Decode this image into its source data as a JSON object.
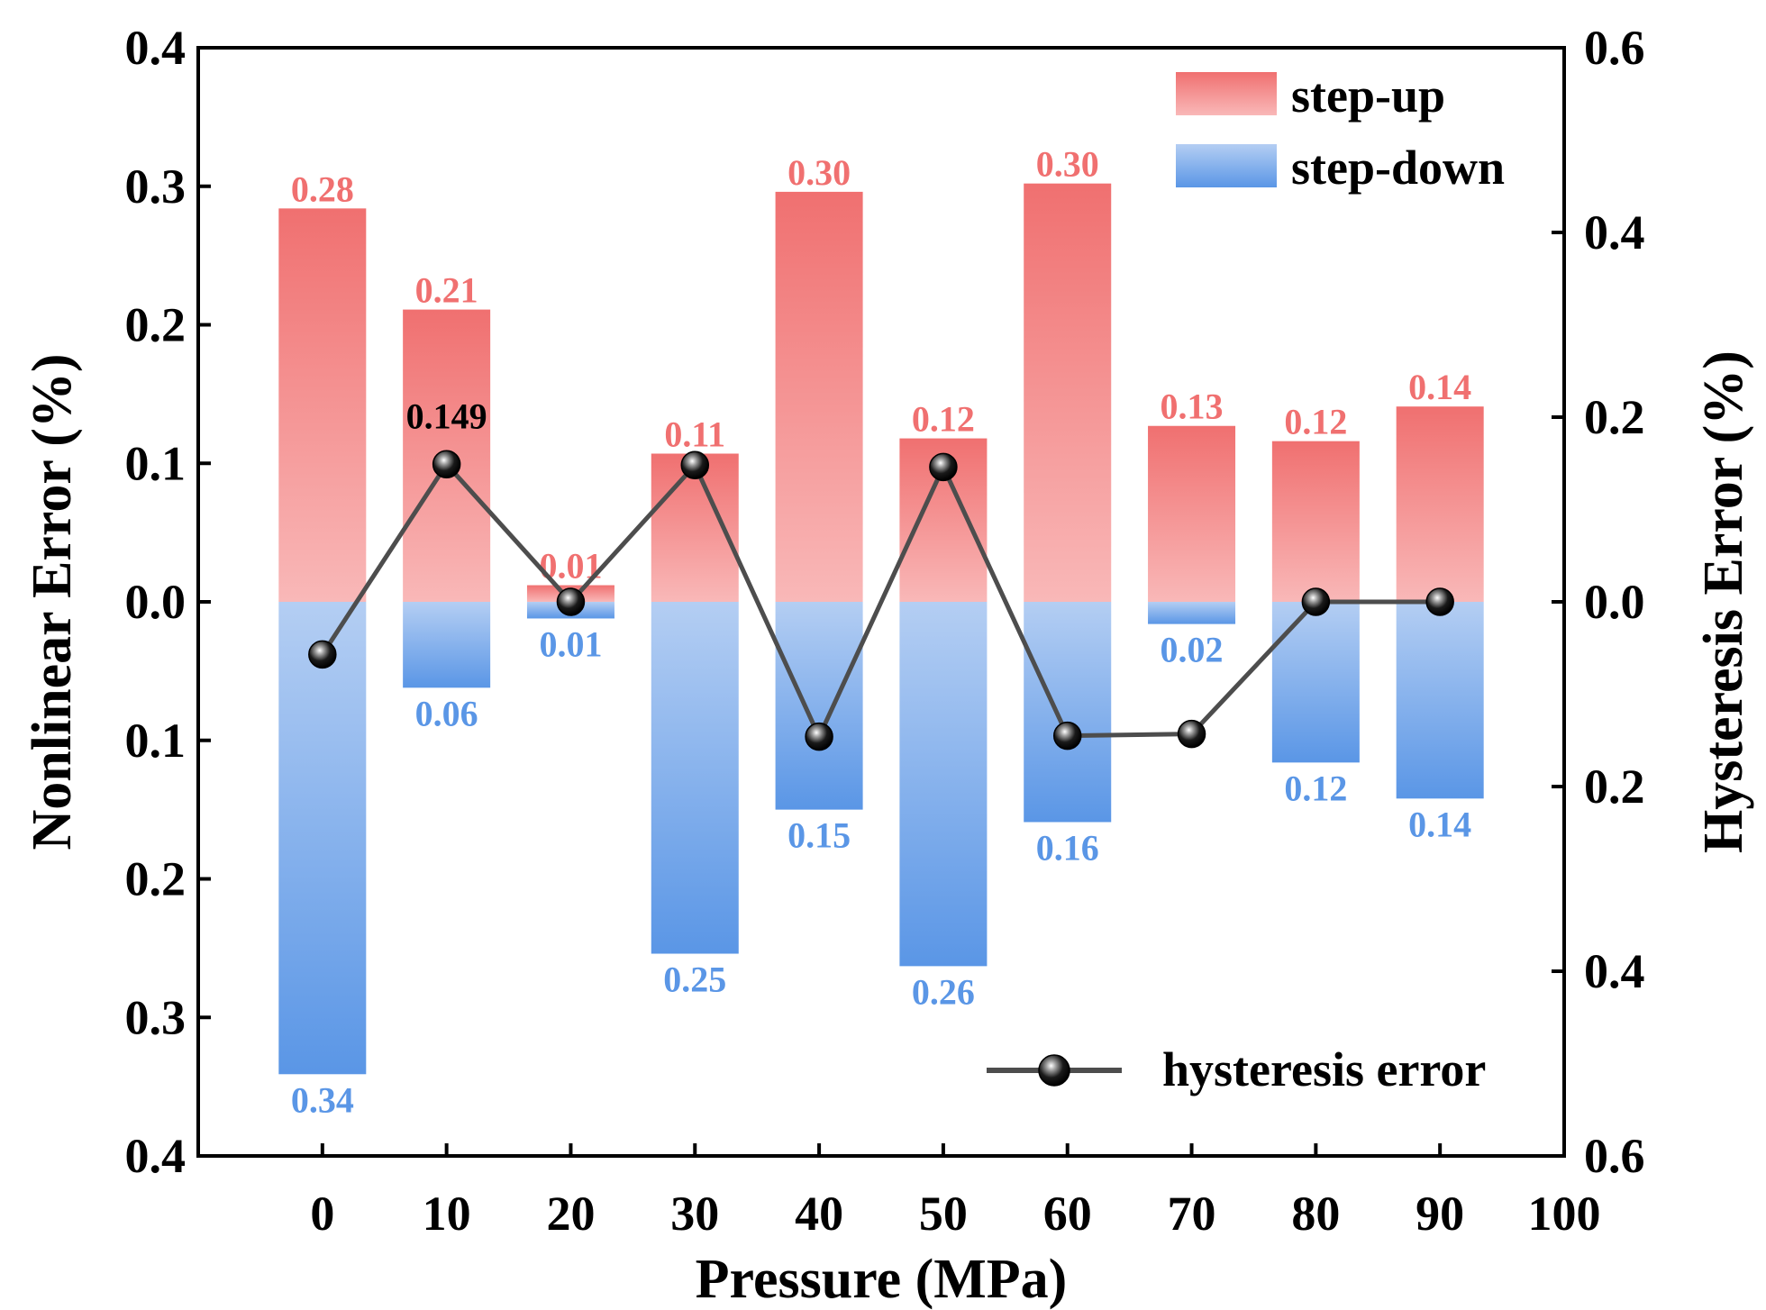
{
  "chart_data": {
    "type": "bar",
    "x": [
      0,
      10,
      20,
      30,
      40,
      50,
      60,
      70,
      80,
      90
    ],
    "xlabel": "Pressure (MPa)",
    "ylabel_left": "Nonlinear Error (%)",
    "ylabel_right": "Hysteresis Error (%)",
    "xlim": [
      -10,
      100
    ],
    "xticks": [
      "0",
      "10",
      "20",
      "30",
      "40",
      "50",
      "60",
      "70",
      "80",
      "90",
      "100"
    ],
    "ylim_left": [
      -0.4,
      0.4
    ],
    "yticks_left": [
      "0.4",
      "0.3",
      "0.2",
      "0.1",
      "0.0",
      "0.1",
      "0.2",
      "0.3",
      "0.4"
    ],
    "ylim_right": [
      -0.6,
      0.6
    ],
    "yticks_right": [
      "0.6",
      "0.4",
      "0.2",
      "0.0",
      "0.2",
      "0.4",
      "0.6"
    ],
    "series": [
      {
        "name": "step-up",
        "values": [
          0.284,
          0.211,
          0.012,
          0.107,
          0.296,
          0.118,
          0.302,
          0.127,
          0.116,
          0.141
        ],
        "labels": [
          "0.28",
          "0.21",
          "0.01",
          "0.11",
          "0.30",
          "0.12",
          "0.30",
          "0.13",
          "0.12",
          "0.14"
        ],
        "color": "#f07070"
      },
      {
        "name": "step-down",
        "values": [
          0.341,
          0.062,
          0.012,
          0.254,
          0.15,
          0.263,
          0.159,
          0.016,
          0.116,
          0.142
        ],
        "labels": [
          "0.34",
          "0.06",
          "0.01",
          "0.25",
          "0.15",
          "0.26",
          "0.16",
          "0.02",
          "0.12",
          "0.14"
        ],
        "color": "#5a96e6"
      },
      {
        "name": "hysteresis error",
        "type": "line",
        "axis": "right",
        "values": [
          -0.057,
          0.149,
          0.0,
          0.148,
          -0.146,
          0.146,
          -0.145,
          -0.143,
          0.0,
          0.0
        ],
        "annotation": {
          "index": 1,
          "text": "0.149"
        },
        "color": "#4d4d4d"
      }
    ],
    "legend": {
      "bars": [
        "step-up",
        "step-down"
      ],
      "bars_position": "top-right",
      "line": "hysteresis error",
      "line_position": "bottom-right"
    }
  }
}
